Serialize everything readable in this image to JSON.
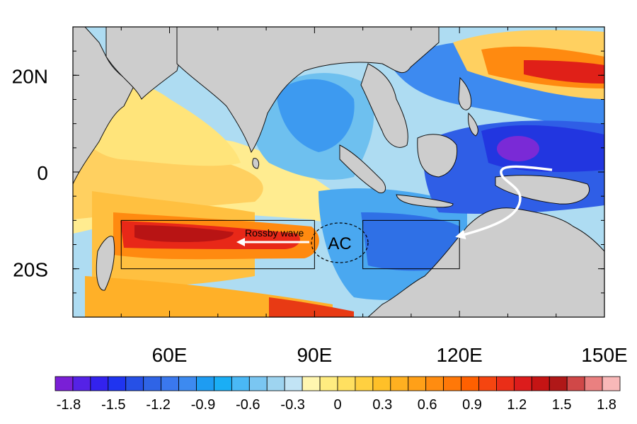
{
  "map": {
    "lat_labels": [
      {
        "text": "20N",
        "lat": 20
      },
      {
        "text": "0",
        "lat": 0
      },
      {
        "text": "20S",
        "lat": -20
      }
    ],
    "lon_labels": [
      {
        "text": "60E",
        "lon": 60
      },
      {
        "text": "90E",
        "lon": 90
      },
      {
        "text": "120E",
        "lon": 120
      },
      {
        "text": "150E",
        "lon": 150
      }
    ],
    "extent": {
      "lon": [
        40,
        150
      ],
      "lat": [
        -30,
        30
      ]
    },
    "annotations": {
      "rossby_wave": "Rossby wave",
      "anticyclone": "AC"
    },
    "boxes": [
      {
        "name": "west-box",
        "lon": [
          50,
          90
        ],
        "lat": [
          -20,
          -10
        ]
      },
      {
        "name": "east-box",
        "lon": [
          100,
          120
        ],
        "lat": [
          -20,
          -10
        ]
      }
    ]
  },
  "colorbar": {
    "labels": [
      "-1.8",
      "-1.5",
      "-1.2",
      "-0.9",
      "-0.6",
      "-0.3",
      "0",
      "0.3",
      "0.6",
      "0.9",
      "1.2",
      "1.5",
      "1.8"
    ],
    "colors": [
      "#7a1fd6",
      "#5522e6",
      "#3322ee",
      "#1f34f0",
      "#2650e6",
      "#2f64e6",
      "#3a78ee",
      "#3d8af0",
      "#1e9cf2",
      "#1aaef5",
      "#4ab8f5",
      "#7ac6f2",
      "#9ed4f0",
      "#c2e4f5",
      "#fff6b0",
      "#ffec80",
      "#ffe060",
      "#ffd040",
      "#ffc028",
      "#ffb020",
      "#ffa018",
      "#ff8c10",
      "#ff7808",
      "#ff6000",
      "#f54510",
      "#ea2e18",
      "#dc1c1c",
      "#c51414",
      "#b01818",
      "#d04848",
      "#ea8080",
      "#f8b8b8"
    ]
  }
}
